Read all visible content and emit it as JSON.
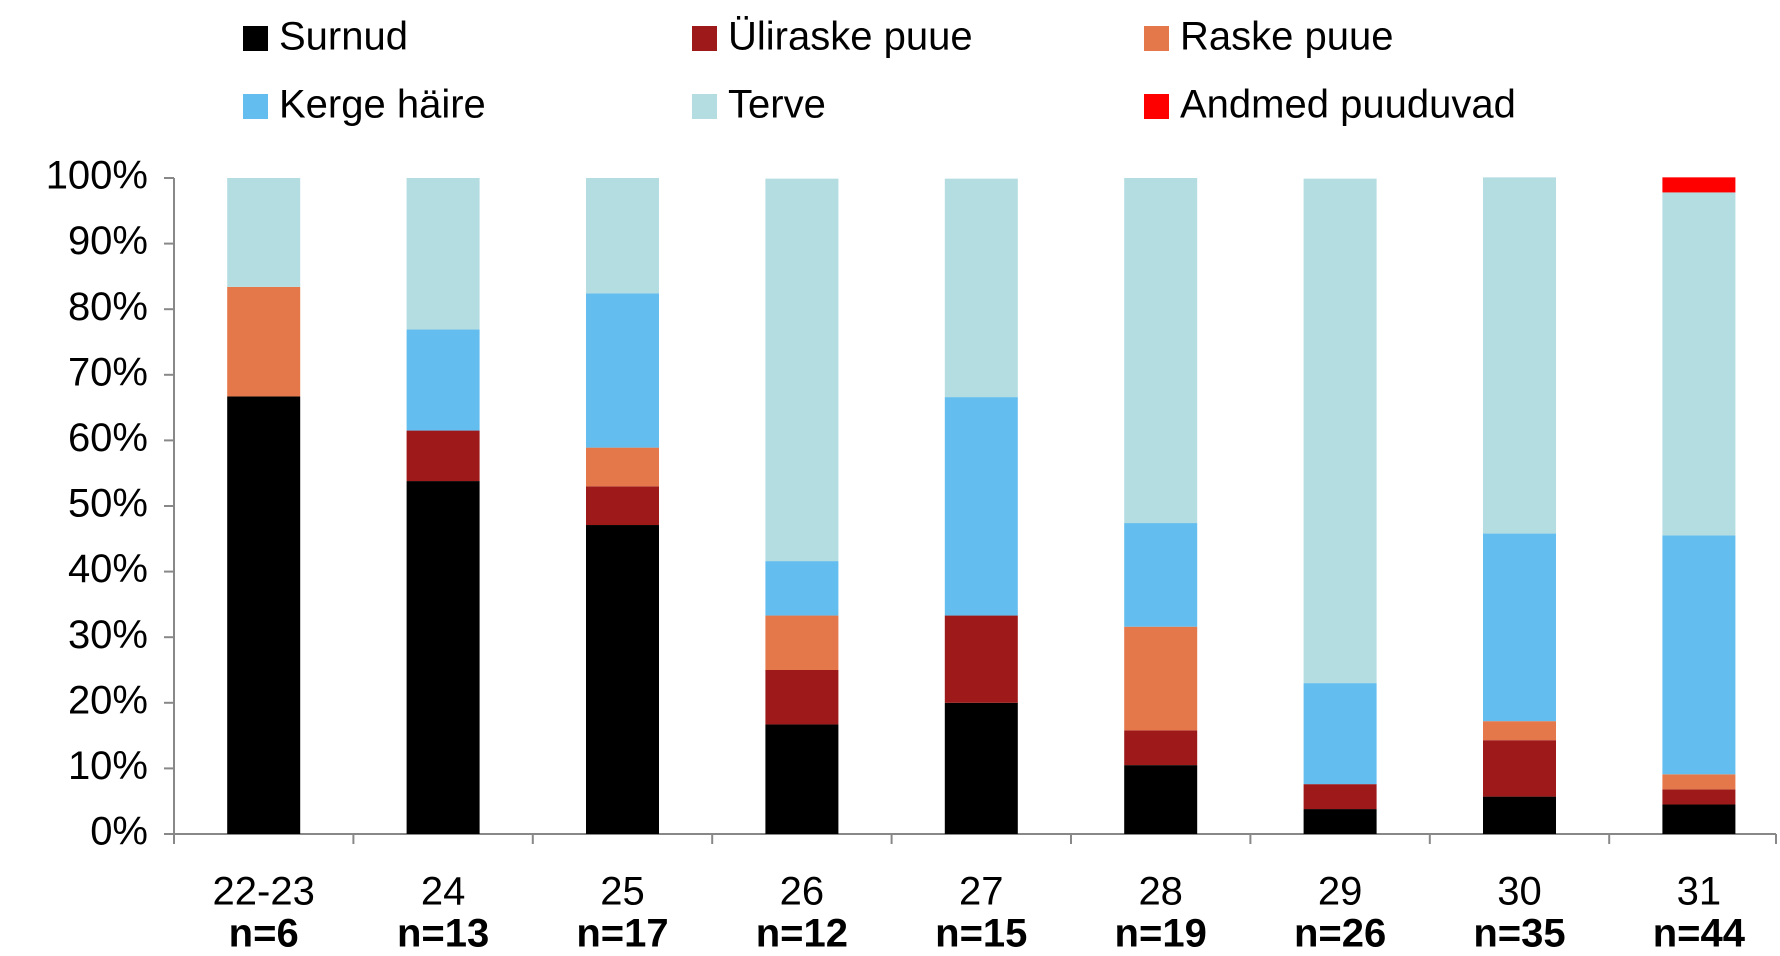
{
  "chart_data": {
    "type": "stacked_bar",
    "categories": [
      "22-23",
      "24",
      "25",
      "26",
      "27",
      "28",
      "29",
      "30",
      "31"
    ],
    "sample_sizes": [
      "n=6",
      "n=13",
      "n=17",
      "n=12",
      "n=15",
      "n=19",
      "n=26",
      "n=35",
      "n=44"
    ],
    "series": [
      {
        "name": "Surnud",
        "color": "#000000",
        "values": [
          66.7,
          53.8,
          47.1,
          16.7,
          20,
          10.5,
          3.8,
          5.7,
          4.5
        ]
      },
      {
        "name": "Üliraske puue",
        "color": "#9e1a1a",
        "values": [
          0,
          7.7,
          5.9,
          8.3,
          13.3,
          5.3,
          3.8,
          8.6,
          2.3
        ]
      },
      {
        "name": "Raske puue",
        "color": "#e5784a",
        "values": [
          16.7,
          0,
          5.9,
          8.3,
          0,
          15.8,
          0,
          2.9,
          2.3
        ]
      },
      {
        "name": "Kerge häire",
        "color": "#63bdee",
        "values": [
          0,
          15.4,
          23.5,
          8.3,
          33.3,
          15.8,
          15.4,
          28.6,
          36.4
        ]
      },
      {
        "name": "Terve",
        "color": "#b4dde2",
        "values": [
          16.6,
          23.1,
          17.6,
          58.3,
          33.3,
          52.6,
          76.9,
          54.3,
          52.3
        ]
      },
      {
        "name": "Andmed puuduvad",
        "color": "#ff0000",
        "values": [
          0,
          0,
          0,
          0,
          0,
          0,
          0,
          0,
          2.3
        ]
      }
    ],
    "ylim": [
      0,
      100
    ],
    "yticks": [
      {
        "value": 0,
        "label": "0%"
      },
      {
        "value": 10,
        "label": "10%"
      },
      {
        "value": 20,
        "label": "20%"
      },
      {
        "value": 30,
        "label": "30%"
      },
      {
        "value": 40,
        "label": "40%"
      },
      {
        "value": 50,
        "label": "50%"
      },
      {
        "value": 60,
        "label": "60%"
      },
      {
        "value": 70,
        "label": "70%"
      },
      {
        "value": 80,
        "label": "80%"
      },
      {
        "value": 90,
        "label": "90%"
      },
      {
        "value": 100,
        "label": "100%"
      }
    ],
    "grid": false,
    "legend": "top"
  }
}
